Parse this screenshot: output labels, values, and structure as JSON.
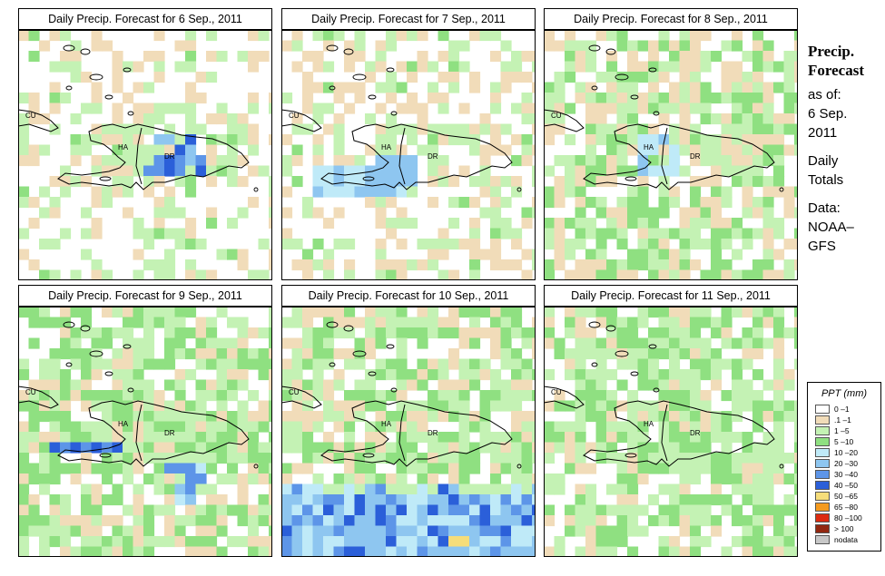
{
  "panels": [
    {
      "title": "Daily Precip. Forecast for  6 Sep., 2011"
    },
    {
      "title": "Daily Precip. Forecast for  7 Sep., 2011"
    },
    {
      "title": "Daily Precip. Forecast for  8 Sep., 2011"
    },
    {
      "title": "Daily Precip. Forecast for  9 Sep., 2011"
    },
    {
      "title": "Daily Precip. Forecast for  10 Sep., 2011"
    },
    {
      "title": "Daily Precip. Forecast for  11 Sep., 2011"
    }
  ],
  "map_labels": {
    "cuba": "CU",
    "haiti": "HA",
    "dominican_republic": "DR"
  },
  "sidebar": {
    "title_line1": "Precip.",
    "title_line2": "Forecast",
    "asof": "as of:",
    "date_line1": "6 Sep.",
    "date_line2": "2011",
    "totals_line1": "Daily",
    "totals_line2": "Totals",
    "data_line1": "Data:",
    "data_line2": "NOAA–",
    "data_line3": "GFS"
  },
  "legend": {
    "title": "PPT (mm)",
    "items": [
      {
        "label": "0 –1",
        "color": "#ffffff"
      },
      {
        "label": ".1 –1",
        "color": "#f1dcb9"
      },
      {
        "label": "1 –5",
        "color": "#c4f2b4"
      },
      {
        "label": "5 –10",
        "color": "#8fe081"
      },
      {
        "label": "10 –20",
        "color": "#bfeaf8"
      },
      {
        "label": "20 –30",
        "color": "#8ec6f0"
      },
      {
        "label": "30 –40",
        "color": "#5d95e8"
      },
      {
        "label": "40 –50",
        "color": "#2b5fd9"
      },
      {
        "label": "50 –65",
        "color": "#f6dd7a"
      },
      {
        "label": "65 –80",
        "color": "#f49a1f"
      },
      {
        "label": "80 –100",
        "color": "#dc2a10"
      },
      {
        "label": "> 100",
        "color": "#922710"
      },
      {
        "label": "nodata",
        "color": "#c7c7c7"
      }
    ]
  }
}
